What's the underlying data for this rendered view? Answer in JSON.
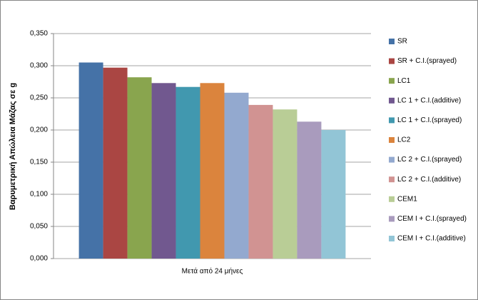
{
  "chart_data": {
    "type": "bar",
    "y_label": "Βαρυμετρική Απώλεια Μάζας σε g",
    "categories": [
      "Μετά από 24 μήνες"
    ],
    "series": [
      {
        "name": "SR",
        "color": "#4572A7",
        "values": [
          0.305
        ]
      },
      {
        "name": "SR + C.I.(sprayed)",
        "color": "#AA4643",
        "values": [
          0.297
        ]
      },
      {
        "name": "LC1",
        "color": "#89A54E",
        "values": [
          0.282
        ]
      },
      {
        "name": "LC 1 + C.I.(additive)",
        "color": "#71588F",
        "values": [
          0.273
        ]
      },
      {
        "name": "LC 1 + C.I.(sprayed)",
        "color": "#4198AF",
        "values": [
          0.267
        ]
      },
      {
        "name": "LC2",
        "color": "#DB843D",
        "values": [
          0.273
        ]
      },
      {
        "name": "LC 2 + C.I.(sprayed)",
        "color": "#93A9CF",
        "values": [
          0.258
        ]
      },
      {
        "name": "LC 2 + C.I.(additive)",
        "color": "#D19392",
        "values": [
          0.239
        ]
      },
      {
        "name": "CEM1",
        "color": "#B9CD96",
        "values": [
          0.232
        ]
      },
      {
        "name": "CEM I + C.I.(sprayed)",
        "color": "#A99BBD",
        "values": [
          0.213
        ]
      },
      {
        "name": "CEM I + C.I.(additive)",
        "color": "#92C5D6",
        "values": [
          0.2
        ]
      }
    ],
    "ylim": [
      0,
      0.35
    ],
    "yticks": [
      {
        "value": 0,
        "label": "0,000"
      },
      {
        "value": 0.05,
        "label": "0,050"
      },
      {
        "value": 0.1,
        "label": "0,100"
      },
      {
        "value": 0.15,
        "label": "0,150"
      },
      {
        "value": 0.2,
        "label": "0,200"
      },
      {
        "value": 0.25,
        "label": "0,250"
      },
      {
        "value": 0.3,
        "label": "0,300"
      },
      {
        "value": 0.35,
        "label": "0,350"
      }
    ],
    "grid": true,
    "legend": "right"
  }
}
